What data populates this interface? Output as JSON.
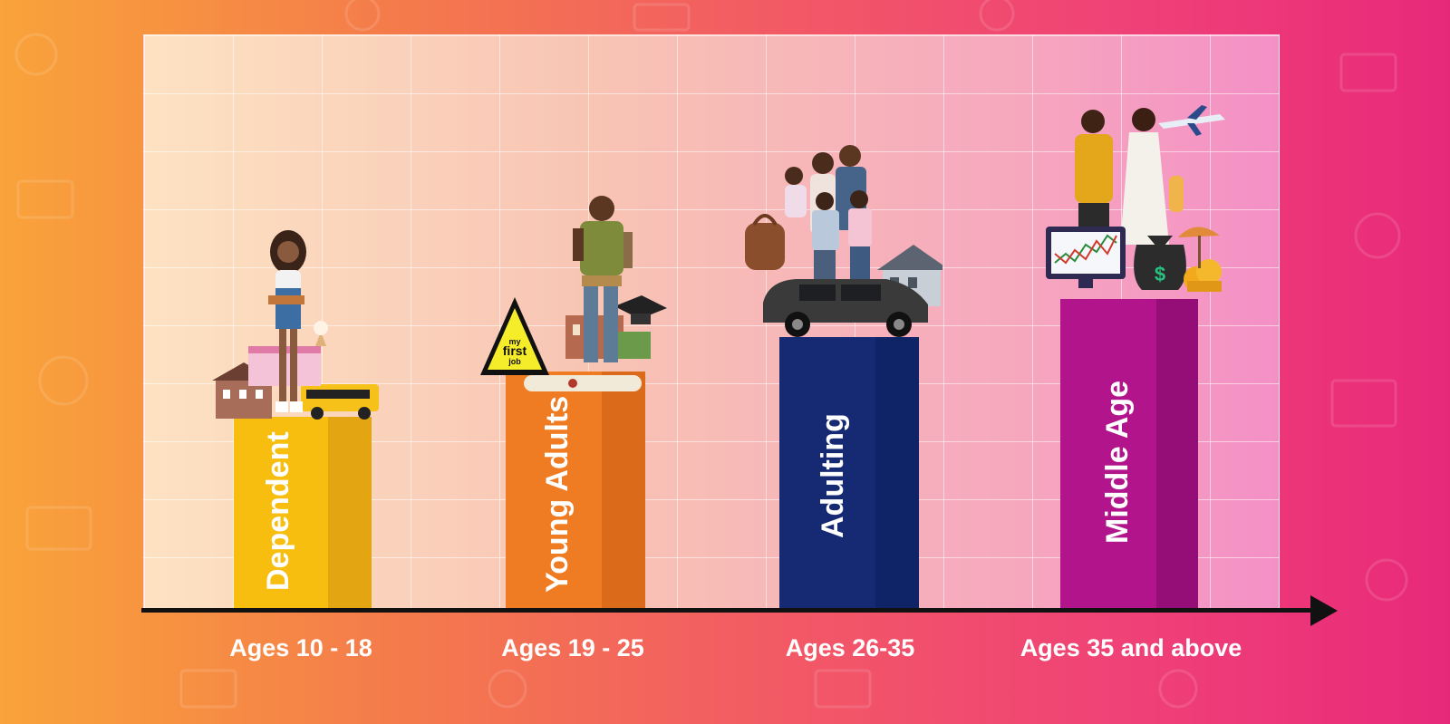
{
  "stages": [
    {
      "label": "Dependent",
      "age": "Ages 10 - 18",
      "color_front": "#f7bd0f",
      "color_side": "#e4a512"
    },
    {
      "label": "Young Adults",
      "age": "Ages 19 - 25",
      "color_front": "#ef7b22",
      "color_side": "#db6a1b"
    },
    {
      "label": "Adulting",
      "age": "Ages 26-35",
      "color_front": "#152a73",
      "color_side": "#0f2466"
    },
    {
      "label": "Middle Age",
      "age": "Ages 35 and above",
      "color_front": "#b1148b",
      "color_side": "#950e78"
    }
  ],
  "sign": {
    "line1": "my",
    "line2": "first",
    "line3": "job"
  },
  "icons": [
    "school-icon",
    "school-bus-icon",
    "ice-cream-icon",
    "graduation-cap-icon",
    "diploma-icon",
    "house-icon",
    "minivan-icon",
    "handbag-icon",
    "stock-chart-icon",
    "money-bag-icon",
    "coins-icon",
    "airplane-icon",
    "beach-umbrella-icon"
  ]
}
